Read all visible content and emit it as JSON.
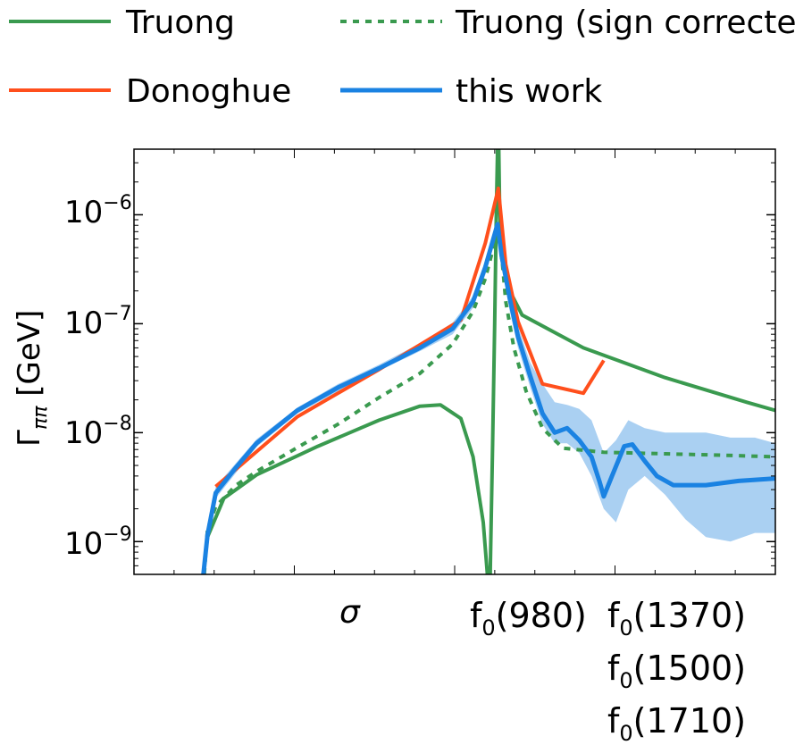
{
  "chart_data": {
    "type": "line",
    "ylabel_base": "Γ",
    "ylabel_sub": "ππ",
    "ylabel_unit": "[GeV]",
    "yscale": "log",
    "ylim": [
      5e-10,
      4e-06
    ],
    "yticks": [
      {
        "value": 1e-09,
        "base": "10",
        "exp": "−9"
      },
      {
        "value": 1e-08,
        "base": "10",
        "exp": "−8"
      },
      {
        "value": 1e-07,
        "base": "10",
        "exp": "−7"
      },
      {
        "value": 1e-06,
        "base": "10",
        "exp": "−6"
      }
    ],
    "x_markers": [
      {
        "key": "sigma",
        "text": "σ"
      },
      {
        "key": "f980",
        "base": "f",
        "sub": "0",
        "rest": "(980)"
      },
      {
        "key": "f1370",
        "base": "f",
        "sub": "0",
        "rest": "(1370)"
      },
      {
        "key": "f1500",
        "base": "f",
        "sub": "0",
        "rest": "(1500)"
      },
      {
        "key": "f1710",
        "base": "f",
        "sub": "0",
        "rest": "(1710)"
      }
    ],
    "legend": [
      {
        "name": "Truong",
        "color": "#3a9a4f",
        "style": "solid"
      },
      {
        "name": "Truong (sign corrected)",
        "color": "#3a9a4f",
        "style": "dotted"
      },
      {
        "name": "Donoghue",
        "color": "#ff4f1c",
        "style": "solid"
      },
      {
        "name": "this work",
        "color": "#1a82e2",
        "style": "solid"
      }
    ],
    "series": [
      {
        "name": "Truong",
        "color": "#3a9a4f",
        "dash": "",
        "points": [
          [
            0.27,
            5e-10
          ],
          [
            0.28,
            1.1e-09
          ],
          [
            0.32,
            2.5e-09
          ],
          [
            0.4,
            4.1e-09
          ],
          [
            0.55,
            7.5e-09
          ],
          [
            0.7,
            1.3e-08
          ],
          [
            0.8,
            1.75e-08
          ],
          [
            0.85,
            1.8e-08
          ],
          [
            0.9,
            1.35e-08
          ],
          [
            0.93,
            6e-09
          ],
          [
            0.955,
            1.5e-09
          ],
          [
            0.965,
            5e-10
          ],
          [
            0.972,
            5e-10
          ],
          [
            0.978,
            8e-09
          ],
          [
            0.983,
            1e-07
          ],
          [
            0.987,
            1e-06
          ],
          [
            0.99,
            4e-06
          ],
          [
            0.993,
            4e-06
          ],
          [
            0.995,
            1.2e-06
          ],
          [
            1.0,
            4e-07
          ],
          [
            1.02,
            2e-07
          ],
          [
            1.05,
            1.2e-07
          ],
          [
            1.2,
            6e-08
          ],
          [
            1.4,
            3.2e-08
          ],
          [
            1.6,
            1.9e-08
          ],
          [
            1.67,
            1.6e-08
          ]
        ]
      },
      {
        "name": "Truong (sign corrected)",
        "color": "#3a9a4f",
        "dash": "7,7",
        "points": [
          [
            0.272,
            5e-10
          ],
          [
            0.28,
            1.3e-09
          ],
          [
            0.3,
            2.1e-09
          ],
          [
            0.35,
            3.3e-09
          ],
          [
            0.4,
            4.4e-09
          ],
          [
            0.5,
            7.3e-09
          ],
          [
            0.6,
            1.2e-08
          ],
          [
            0.7,
            2.1e-08
          ],
          [
            0.8,
            3.5e-08
          ],
          [
            0.88,
            6.5e-08
          ],
          [
            0.93,
            1.3e-07
          ],
          [
            0.96,
            2.6e-07
          ],
          [
            0.98,
            5e-07
          ],
          [
            0.99,
            7e-07
          ],
          [
            1.0,
            4.3e-07
          ],
          [
            1.01,
            1.6e-07
          ],
          [
            1.03,
            6e-08
          ],
          [
            1.06,
            2.4e-08
          ],
          [
            1.1,
            1.1e-08
          ],
          [
            1.15,
            7.2e-09
          ],
          [
            1.25,
            6.6e-09
          ],
          [
            1.4,
            6.4e-09
          ],
          [
            1.55,
            6.2e-09
          ],
          [
            1.67,
            6e-09
          ]
        ]
      },
      {
        "name": "Donoghue",
        "color": "#ff4f1c",
        "dash": "",
        "points": [
          [
            0.3,
            3.2e-09
          ],
          [
            0.5,
            1.4e-08
          ],
          [
            0.7,
            3.8e-08
          ],
          [
            0.9,
            1.08e-07
          ],
          [
            0.96,
            5.5e-07
          ],
          [
            0.992,
            1.75e-06
          ],
          [
            1.01,
            3.5e-07
          ],
          [
            1.04,
            1.05e-07
          ],
          [
            1.1,
            2.8e-08
          ],
          [
            1.2,
            2.3e-08
          ],
          [
            1.25,
            4.6e-08
          ]
        ]
      },
      {
        "name": "this work",
        "color": "#1a82e2",
        "dash": "",
        "band": [
          [
            0.28,
            1e-09,
            1.3e-09
          ],
          [
            0.3,
            2.5e-09,
            3.2e-09
          ],
          [
            0.4,
            7.4e-09,
            8.7e-09
          ],
          [
            0.5,
            1.5e-08,
            1.7e-08
          ],
          [
            0.6,
            2.4e-08,
            2.8e-08
          ],
          [
            0.7,
            3.7e-08,
            4.2e-08
          ],
          [
            0.8,
            5.6e-08,
            6.6e-08
          ],
          [
            0.88,
            8e-08,
            1.02e-07
          ],
          [
            0.93,
            1.4e-07,
            1.8e-07
          ],
          [
            0.96,
            2.8e-07,
            3.8e-07
          ],
          [
            0.99,
            7e-07,
            9.5e-07
          ],
          [
            1.0,
            3.5e-07,
            5e-07
          ],
          [
            1.02,
            1.3e-07,
            2.1e-07
          ],
          [
            1.04,
            6e-08,
            9.5e-08
          ],
          [
            1.07,
            2.6e-08,
            4.4e-08
          ],
          [
            1.1,
            1.2e-08,
            2.8e-08
          ],
          [
            1.13,
            8e-09,
            1.9e-08
          ],
          [
            1.16,
            8e-09,
            1.8e-08
          ],
          [
            1.19,
            6.5e-09,
            1.65e-08
          ],
          [
            1.22,
            4e-09,
            1.3e-08
          ],
          [
            1.25,
            2e-09,
            6.5e-09
          ],
          [
            1.28,
            1.5e-09,
            8.5e-09
          ],
          [
            1.31,
            3e-09,
            1.3e-08
          ],
          [
            1.35,
            4e-09,
            1.1e-08
          ],
          [
            1.4,
            2.7e-09,
            1e-08
          ],
          [
            1.45,
            1.6e-09,
            1e-08
          ],
          [
            1.5,
            1.1e-09,
            1e-08
          ],
          [
            1.56,
            1e-09,
            9e-09
          ],
          [
            1.62,
            1.2e-09,
            9e-09
          ],
          [
            1.67,
            1.2e-09,
            8e-09
          ]
        ],
        "points": [
          [
            0.27,
            5e-10
          ],
          [
            0.28,
            1.15e-09
          ],
          [
            0.3,
            2.8e-09
          ],
          [
            0.35,
            4.8e-09
          ],
          [
            0.4,
            8e-09
          ],
          [
            0.5,
            1.6e-08
          ],
          [
            0.6,
            2.6e-08
          ],
          [
            0.7,
            3.9e-08
          ],
          [
            0.8,
            6e-08
          ],
          [
            0.88,
            9e-08
          ],
          [
            0.93,
            1.6e-07
          ],
          [
            0.96,
            3.3e-07
          ],
          [
            0.99,
            8.2e-07
          ],
          [
            1.0,
            4.2e-07
          ],
          [
            1.02,
            1.7e-07
          ],
          [
            1.04,
            7.6e-08
          ],
          [
            1.07,
            3.3e-08
          ],
          [
            1.1,
            1.5e-08
          ],
          [
            1.13,
            1e-08
          ],
          [
            1.16,
            1.1e-08
          ],
          [
            1.19,
            8.5e-09
          ],
          [
            1.22,
            6e-09
          ],
          [
            1.24,
            3.5e-09
          ],
          [
            1.25,
            2.6e-09
          ],
          [
            1.27,
            4e-09
          ],
          [
            1.3,
            7.5e-09
          ],
          [
            1.32,
            7.8e-09
          ],
          [
            1.35,
            5.5e-09
          ],
          [
            1.38,
            4e-09
          ],
          [
            1.42,
            3.3e-09
          ],
          [
            1.5,
            3.3e-09
          ],
          [
            1.58,
            3.6e-09
          ],
          [
            1.67,
            3.8e-09
          ]
        ]
      }
    ]
  }
}
